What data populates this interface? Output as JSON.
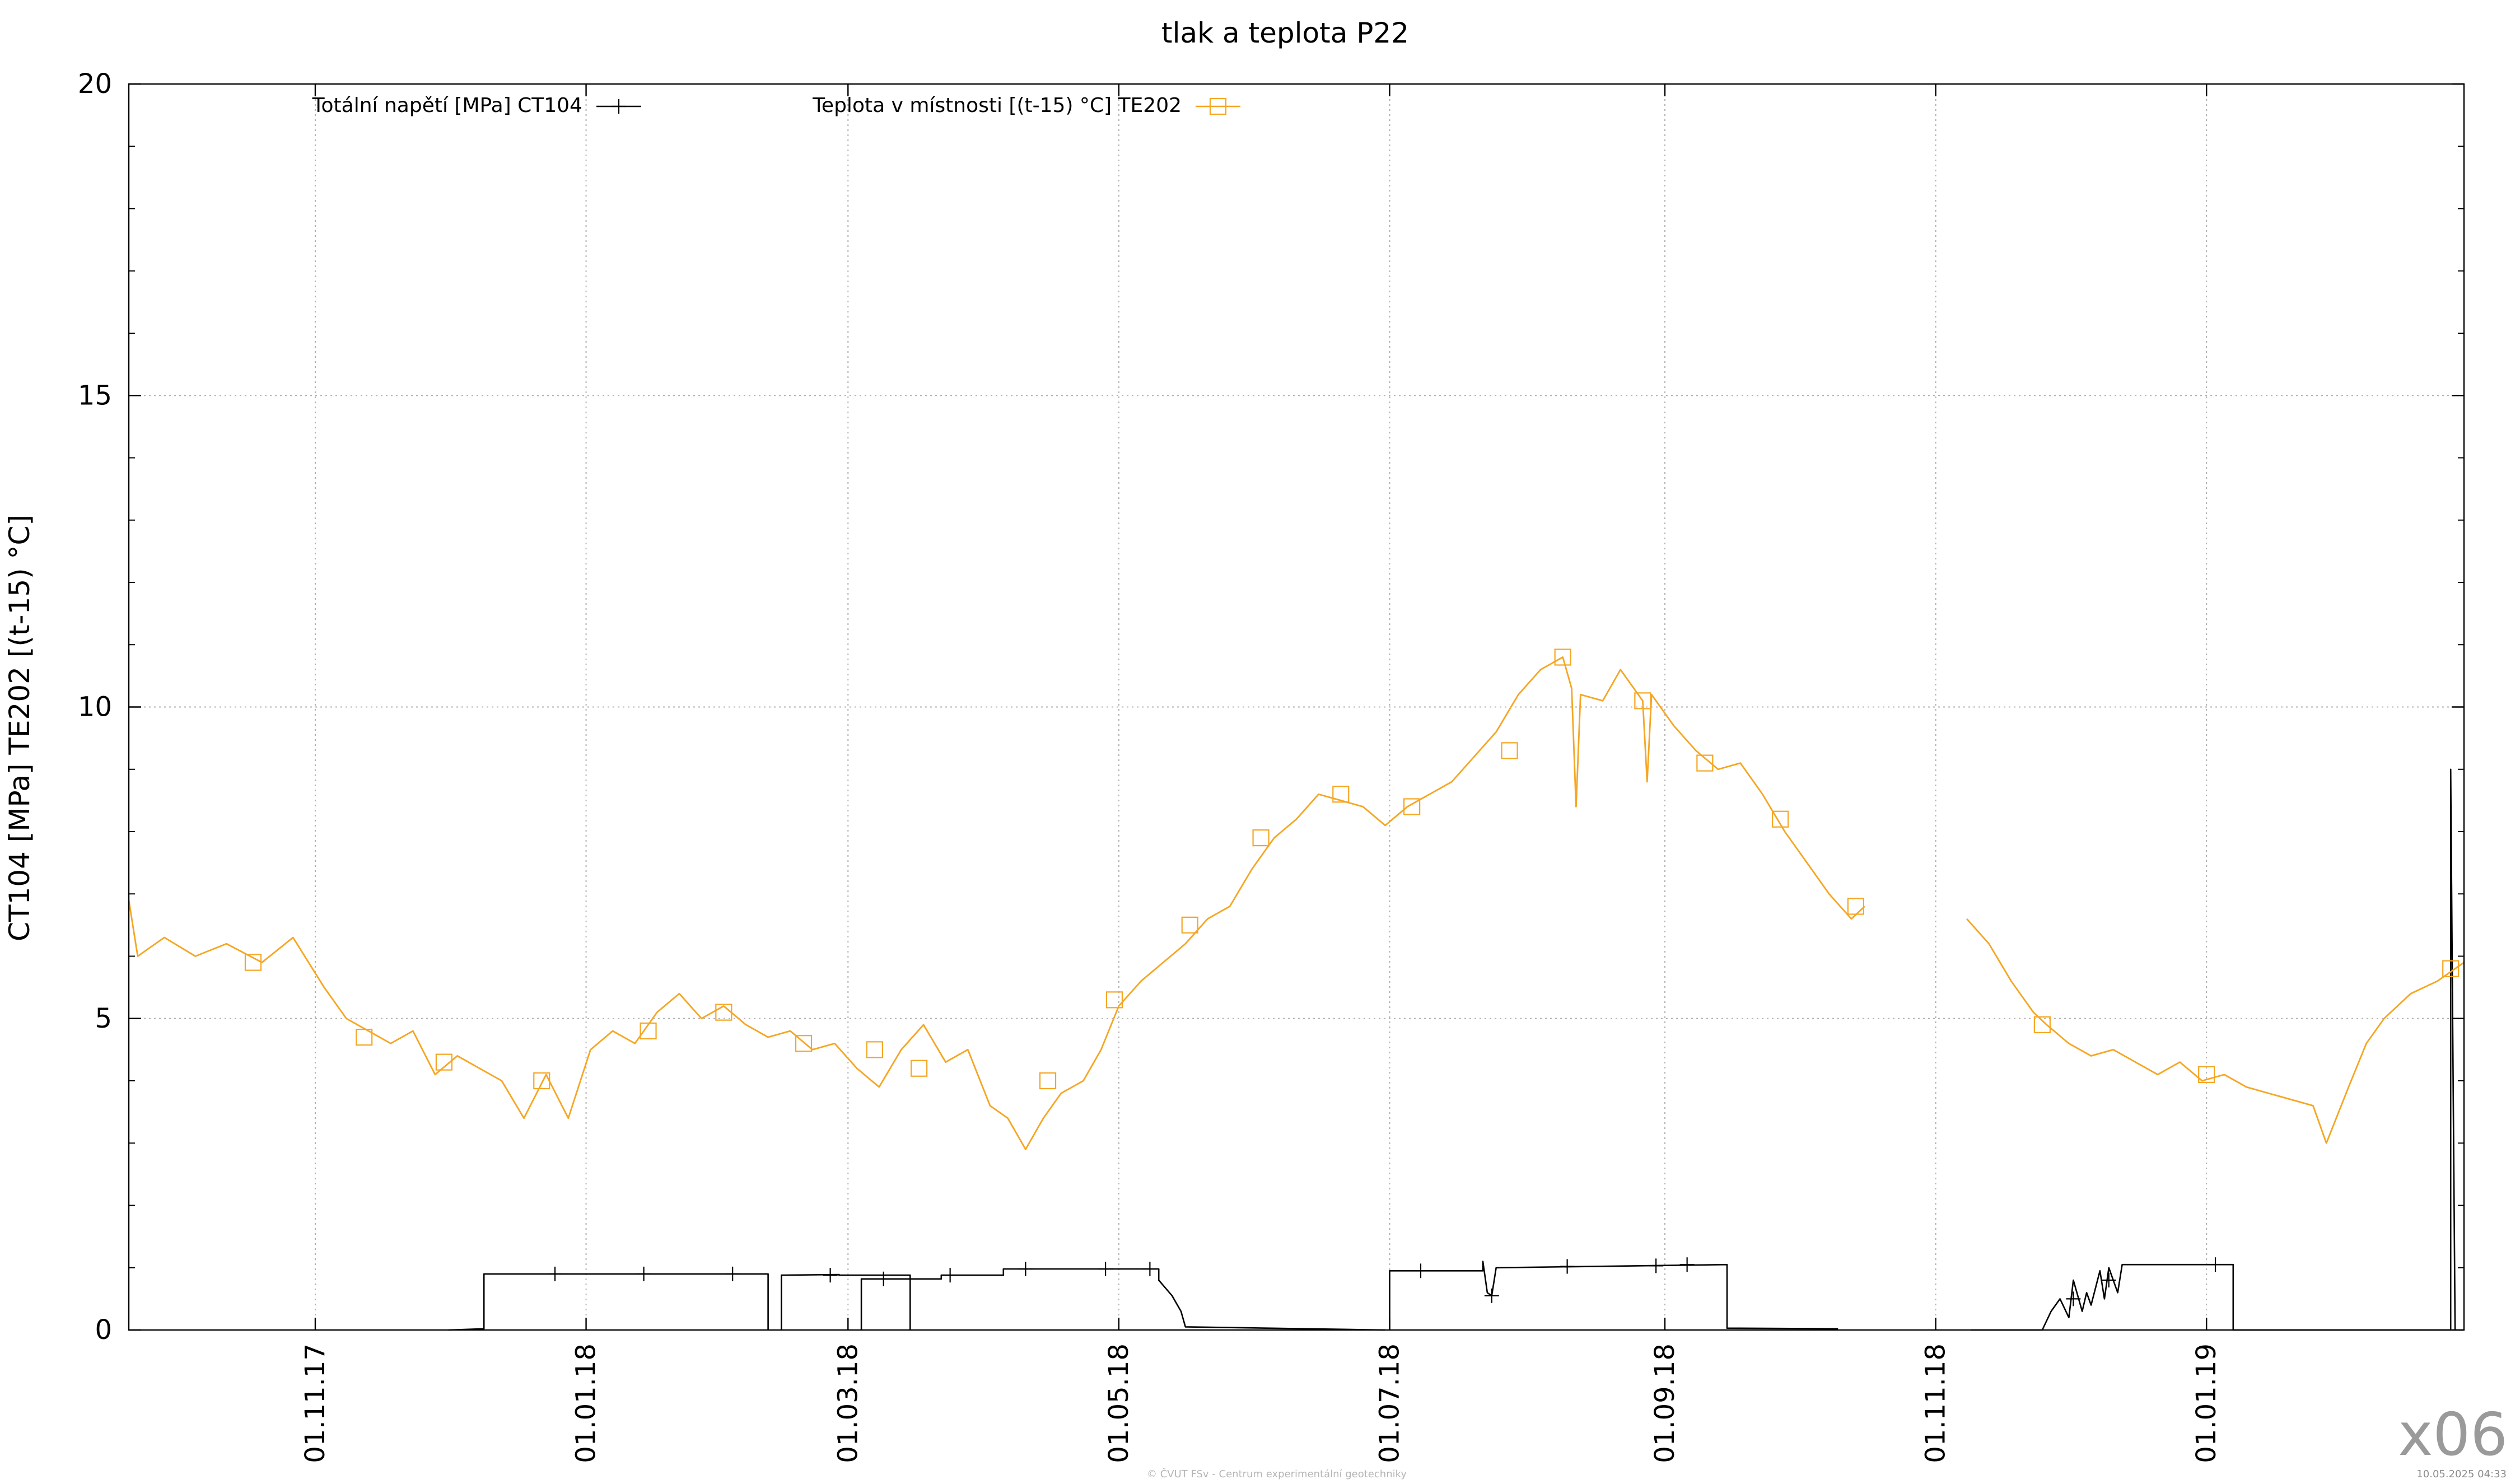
{
  "chart_data": {
    "type": "line",
    "title": "tlak a teplota P22",
    "xlabel": "",
    "ylabel": "CT104 [MPa] TE202 [(t-15) °C]",
    "ylim": [
      0,
      20
    ],
    "yticks": [
      0,
      5,
      10,
      15,
      20
    ],
    "xlim": [
      "2017-09-20",
      "2019-02-28"
    ],
    "xticks": [
      {
        "label": "01.11.17",
        "date": "2017-11-01"
      },
      {
        "label": "01.01.18",
        "date": "2018-01-01"
      },
      {
        "label": "01.03.18",
        "date": "2018-03-01"
      },
      {
        "label": "01.05.18",
        "date": "2018-05-01"
      },
      {
        "label": "01.07.18",
        "date": "2018-07-01"
      },
      {
        "label": "01.09.18",
        "date": "2018-09-01"
      },
      {
        "label": "01.11.18",
        "date": "2018-11-01"
      },
      {
        "label": "01.01.19",
        "date": "2019-01-01"
      }
    ],
    "grid": true,
    "legend_position": "top",
    "series": [
      {
        "name": "Totální napětí [MPa] CT104",
        "color": "#000000",
        "marker": "plus",
        "segments": [
          [
            [
              "2017-12-01",
              0
            ],
            [
              "2017-12-09",
              0.02
            ],
            [
              "2017-12-09",
              0.9
            ],
            [
              "2018-02-11",
              0.9
            ],
            [
              "2018-02-11",
              0
            ]
          ],
          [
            [
              "2018-02-14",
              0
            ],
            [
              "2018-02-14",
              0.88
            ],
            [
              "2018-02-27",
              0.89
            ],
            [
              "2018-02-27",
              0.88
            ],
            [
              "2018-03-15",
              0.88
            ],
            [
              "2018-03-15",
              0
            ]
          ],
          [
            [
              "2018-03-04",
              0
            ],
            [
              "2018-03-04",
              0.82
            ],
            [
              "2018-03-22",
              0.82
            ],
            [
              "2018-03-22",
              0.88
            ],
            [
              "2018-04-05",
              0.88
            ],
            [
              "2018-04-05",
              0.98
            ],
            [
              "2018-05-10",
              0.98
            ],
            [
              "2018-05-10",
              0.8
            ],
            [
              "2018-05-13",
              0.55
            ],
            [
              "2018-05-15",
              0.3
            ],
            [
              "2018-05-16",
              0.05
            ],
            [
              "2018-06-30",
              0.0
            ]
          ],
          [
            [
              "2018-07-01",
              0
            ],
            [
              "2018-07-01",
              0.95
            ],
            [
              "2018-07-22",
              0.95
            ],
            [
              "2018-07-22",
              1.1
            ],
            [
              "2018-07-23",
              0.6
            ],
            [
              "2018-07-24",
              0.55
            ],
            [
              "2018-07-25",
              1.0
            ],
            [
              "2018-09-15",
              1.05
            ],
            [
              "2018-09-15",
              0.03
            ],
            [
              "2018-10-10",
              0.02
            ]
          ],
          [
            [
              "2018-11-09",
              0
            ],
            [
              "2018-11-25",
              0.0
            ],
            [
              "2018-11-27",
              0.3
            ],
            [
              "2018-11-29",
              0.5
            ],
            [
              "2018-12-01",
              0.2
            ],
            [
              "2018-12-02",
              0.8
            ],
            [
              "2018-12-04",
              0.3
            ],
            [
              "2018-12-05",
              0.6
            ],
            [
              "2018-12-06",
              0.4
            ],
            [
              "2018-12-08",
              0.95
            ],
            [
              "2018-12-09",
              0.5
            ],
            [
              "2018-12-10",
              1.0
            ],
            [
              "2018-12-12",
              0.6
            ],
            [
              "2018-12-13",
              1.05
            ],
            [
              "2019-01-07",
              1.05
            ],
            [
              "2019-01-07",
              0.0
            ],
            [
              "2019-02-25",
              0.0
            ],
            [
              "2019-02-25",
              9.0
            ],
            [
              "2019-02-26",
              0.0
            ]
          ]
        ],
        "markers": [
          [
            "2017-12-25",
            0.9
          ],
          [
            "2018-01-14",
            0.9
          ],
          [
            "2018-02-03",
            0.9
          ],
          [
            "2018-02-25",
            0.88
          ],
          [
            "2018-03-09",
            0.82
          ],
          [
            "2018-03-24",
            0.88
          ],
          [
            "2018-04-10",
            0.98
          ],
          [
            "2018-04-28",
            0.98
          ],
          [
            "2018-05-08",
            0.98
          ],
          [
            "2018-07-08",
            0.95
          ],
          [
            "2018-07-24",
            0.55
          ],
          [
            "2018-08-10",
            1.02
          ],
          [
            "2018-08-30",
            1.03
          ],
          [
            "2018-09-06",
            1.05
          ],
          [
            "2018-12-02",
            0.5
          ],
          [
            "2018-12-10",
            0.8
          ],
          [
            "2019-01-03",
            1.05
          ]
        ]
      },
      {
        "name": "Teplota v místnosti [(t-15) °C] TE202",
        "color": "#f5a623",
        "marker": "square",
        "segments": [
          [
            [
              "2017-09-20",
              6.9
            ],
            [
              "2017-09-22",
              6.0
            ],
            [
              "2017-09-28",
              6.3
            ],
            [
              "2017-10-05",
              6.0
            ],
            [
              "2017-10-12",
              6.2
            ],
            [
              "2017-10-20",
              5.9
            ],
            [
              "2017-10-27",
              6.3
            ],
            [
              "2017-11-03",
              5.5
            ],
            [
              "2017-11-08",
              5.0
            ],
            [
              "2017-11-13",
              4.8
            ],
            [
              "2017-11-18",
              4.6
            ],
            [
              "2017-11-23",
              4.8
            ],
            [
              "2017-11-28",
              4.1
            ],
            [
              "2017-12-03",
              4.4
            ],
            [
              "2017-12-08",
              4.2
            ],
            [
              "2017-12-13",
              4.0
            ],
            [
              "2017-12-18",
              3.4
            ],
            [
              "2017-12-23",
              4.1
            ],
            [
              "2017-12-28",
              3.4
            ],
            [
              "2018-01-02",
              4.5
            ],
            [
              "2018-01-07",
              4.8
            ],
            [
              "2018-01-12",
              4.6
            ],
            [
              "2018-01-17",
              5.1
            ],
            [
              "2018-01-22",
              5.4
            ],
            [
              "2018-01-27",
              5.0
            ],
            [
              "2018-02-01",
              5.2
            ],
            [
              "2018-02-06",
              4.9
            ],
            [
              "2018-02-11",
              4.7
            ],
            [
              "2018-02-16",
              4.8
            ],
            [
              "2018-02-21",
              4.5
            ],
            [
              "2018-02-26",
              4.6
            ],
            [
              "2018-03-03",
              4.2
            ],
            [
              "2018-03-08",
              3.9
            ],
            [
              "2018-03-13",
              4.5
            ],
            [
              "2018-03-18",
              4.9
            ],
            [
              "2018-03-23",
              4.3
            ],
            [
              "2018-03-28",
              4.5
            ],
            [
              "2018-04-02",
              3.6
            ],
            [
              "2018-04-06",
              3.4
            ],
            [
              "2018-04-10",
              2.9
            ],
            [
              "2018-04-14",
              3.4
            ],
            [
              "2018-04-18",
              3.8
            ],
            [
              "2018-04-23",
              4.0
            ],
            [
              "2018-04-27",
              4.5
            ],
            [
              "2018-05-01",
              5.2
            ],
            [
              "2018-05-06",
              5.6
            ],
            [
              "2018-05-11",
              5.9
            ],
            [
              "2018-05-16",
              6.2
            ],
            [
              "2018-05-21",
              6.6
            ],
            [
              "2018-05-26",
              6.8
            ],
            [
              "2018-05-31",
              7.4
            ],
            [
              "2018-06-05",
              7.9
            ],
            [
              "2018-06-10",
              8.2
            ],
            [
              "2018-06-15",
              8.6
            ],
            [
              "2018-06-20",
              8.5
            ],
            [
              "2018-06-25",
              8.4
            ],
            [
              "2018-06-30",
              8.1
            ],
            [
              "2018-07-05",
              8.4
            ],
            [
              "2018-07-10",
              8.6
            ],
            [
              "2018-07-15",
              8.8
            ],
            [
              "2018-07-20",
              9.2
            ],
            [
              "2018-07-25",
              9.6
            ],
            [
              "2018-07-30",
              10.2
            ],
            [
              "2018-08-04",
              10.6
            ],
            [
              "2018-08-09",
              10.8
            ],
            [
              "2018-08-11",
              10.3
            ],
            [
              "2018-08-12",
              8.4
            ],
            [
              "2018-08-13",
              10.2
            ],
            [
              "2018-08-18",
              10.1
            ],
            [
              "2018-08-22",
              10.6
            ],
            [
              "2018-08-27",
              10.1
            ],
            [
              "2018-08-28",
              8.8
            ],
            [
              "2018-08-29",
              10.2
            ],
            [
              "2018-09-03",
              9.7
            ],
            [
              "2018-09-08",
              9.3
            ],
            [
              "2018-09-13",
              9.0
            ],
            [
              "2018-09-18",
              9.1
            ],
            [
              "2018-09-23",
              8.6
            ],
            [
              "2018-09-28",
              8.0
            ],
            [
              "2018-10-03",
              7.5
            ],
            [
              "2018-10-08",
              7.0
            ],
            [
              "2018-10-13",
              6.6
            ],
            [
              "2018-10-16",
              6.8
            ]
          ],
          [
            [
              "2018-11-08",
              6.6
            ],
            [
              "2018-11-13",
              6.2
            ],
            [
              "2018-11-18",
              5.6
            ],
            [
              "2018-11-23",
              5.1
            ],
            [
              "2018-11-26",
              4.9
            ],
            [
              "2018-12-01",
              4.6
            ],
            [
              "2018-12-06",
              4.4
            ],
            [
              "2018-12-11",
              4.5
            ],
            [
              "2018-12-16",
              4.3
            ],
            [
              "2018-12-21",
              4.1
            ],
            [
              "2018-12-26",
              4.3
            ],
            [
              "2018-12-31",
              4.0
            ],
            [
              "2019-01-05",
              4.1
            ],
            [
              "2019-01-10",
              3.9
            ],
            [
              "2019-01-15",
              3.8
            ],
            [
              "2019-01-20",
              3.7
            ],
            [
              "2019-01-25",
              3.6
            ],
            [
              "2019-01-28",
              3.0
            ],
            [
              "2019-02-02",
              3.9
            ],
            [
              "2019-02-06",
              4.6
            ],
            [
              "2019-02-10",
              5.0
            ],
            [
              "2019-02-16",
              5.4
            ],
            [
              "2019-02-22",
              5.6
            ],
            [
              "2019-02-28",
              5.9
            ]
          ]
        ],
        "markers": [
          [
            "2017-10-18",
            5.9
          ],
          [
            "2017-11-12",
            4.7
          ],
          [
            "2017-11-30",
            4.3
          ],
          [
            "2017-12-22",
            4.0
          ],
          [
            "2018-01-15",
            4.8
          ],
          [
            "2018-02-01",
            5.1
          ],
          [
            "2018-02-19",
            4.6
          ],
          [
            "2018-03-07",
            4.5
          ],
          [
            "2018-03-17",
            4.2
          ],
          [
            "2018-04-15",
            4.0
          ],
          [
            "2018-04-30",
            5.3
          ],
          [
            "2018-05-17",
            6.5
          ],
          [
            "2018-06-02",
            7.9
          ],
          [
            "2018-06-20",
            8.6
          ],
          [
            "2018-07-06",
            8.4
          ],
          [
            "2018-07-28",
            9.3
          ],
          [
            "2018-08-09",
            10.8
          ],
          [
            "2018-08-27",
            10.1
          ],
          [
            "2018-09-10",
            9.1
          ],
          [
            "2018-09-27",
            8.2
          ],
          [
            "2018-10-14",
            6.8
          ],
          [
            "2018-11-25",
            4.9
          ],
          [
            "2019-01-01",
            4.1
          ],
          [
            "2019-02-25",
            5.8
          ]
        ]
      }
    ]
  },
  "footer": {
    "credit": "© ČVUT FSv - Centrum experimentální geotechniky",
    "timestamp": "10.05.2025 04:33",
    "watermark": "x06"
  }
}
